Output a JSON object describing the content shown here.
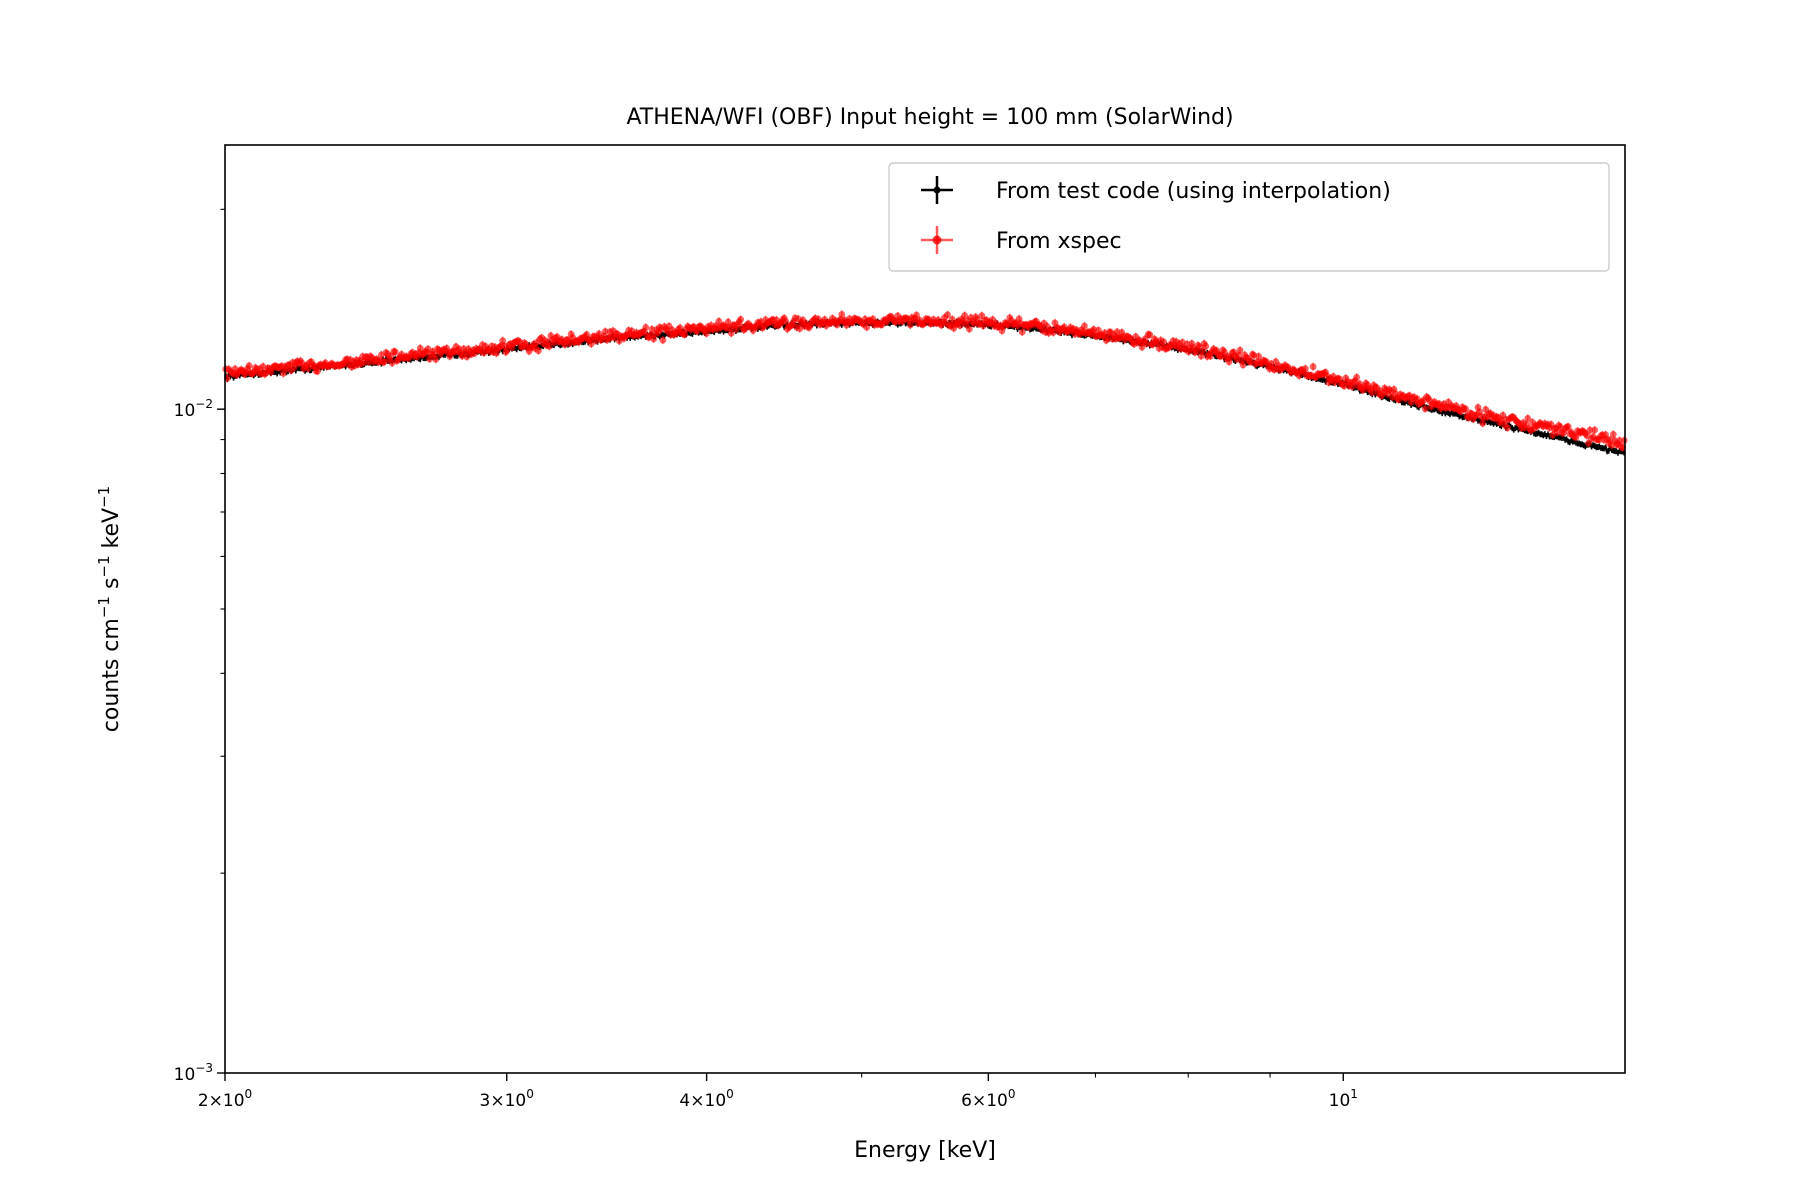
{
  "chart_data": {
    "type": "scatter",
    "title": "ATHENA/WFI (OBF) Input height = 100 mm (SolarWind)",
    "xlabel": "Energy [keV]",
    "ylabel": {
      "base": "counts cm",
      "exp1": "−1",
      "mid": " s",
      "exp2": "−1",
      "unit": " keV",
      "exp3": "−1"
    },
    "xscale": "log",
    "yscale": "log",
    "xlim": [
      2.0,
      15.0
    ],
    "ylim": [
      0.001,
      0.025
    ],
    "x_ticks": [
      {
        "value": 2,
        "mant": "2",
        "exp": "0"
      },
      {
        "value": 3,
        "mant": "3",
        "exp": "0"
      },
      {
        "value": 4,
        "mant": "4",
        "exp": "0"
      },
      {
        "value": 6,
        "mant": "6",
        "exp": "0"
      },
      {
        "value": 10,
        "mant": "",
        "exp": "1"
      }
    ],
    "y_ticks": [
      {
        "value": 0.001,
        "base": "10",
        "exp": "−3"
      },
      {
        "value": 0.01,
        "base": "10",
        "exp": "−2"
      }
    ],
    "legend_position": "upper-right",
    "series": [
      {
        "name": "From test code (using interpolation)",
        "color": "#000000",
        "marker": "errorbar-cross",
        "points": [
          [
            2.0,
            0.0112
          ],
          [
            2.5,
            0.0118
          ],
          [
            3.0,
            0.0123
          ],
          [
            3.5,
            0.0128
          ],
          [
            4.0,
            0.0131
          ],
          [
            4.5,
            0.0134
          ],
          [
            5.0,
            0.0135
          ],
          [
            5.5,
            0.0135
          ],
          [
            6.0,
            0.0134
          ],
          [
            6.5,
            0.0132
          ],
          [
            7.0,
            0.0129
          ],
          [
            8.0,
            0.0123
          ],
          [
            9.0,
            0.0116
          ],
          [
            10.0,
            0.0109
          ],
          [
            11.0,
            0.0102
          ],
          [
            12.0,
            0.0097
          ],
          [
            13.0,
            0.0093
          ],
          [
            14.0,
            0.0089
          ],
          [
            15.0,
            0.0086
          ]
        ]
      },
      {
        "name": "From xspec",
        "color": "#ff0000",
        "marker": "dot-with-errorbar",
        "points": [
          [
            2.0,
            0.0113
          ],
          [
            2.5,
            0.0119
          ],
          [
            3.0,
            0.0124
          ],
          [
            3.5,
            0.0129
          ],
          [
            4.0,
            0.0132
          ],
          [
            4.5,
            0.0135
          ],
          [
            5.0,
            0.0136
          ],
          [
            5.5,
            0.0136
          ],
          [
            6.0,
            0.0135
          ],
          [
            6.5,
            0.0133
          ],
          [
            7.0,
            0.013
          ],
          [
            8.0,
            0.0124
          ],
          [
            9.0,
            0.0117
          ],
          [
            10.0,
            0.011
          ],
          [
            11.0,
            0.0104
          ],
          [
            12.0,
            0.0099
          ],
          [
            13.0,
            0.0095
          ],
          [
            14.0,
            0.0092
          ],
          [
            15.0,
            0.0089
          ]
        ]
      }
    ]
  }
}
